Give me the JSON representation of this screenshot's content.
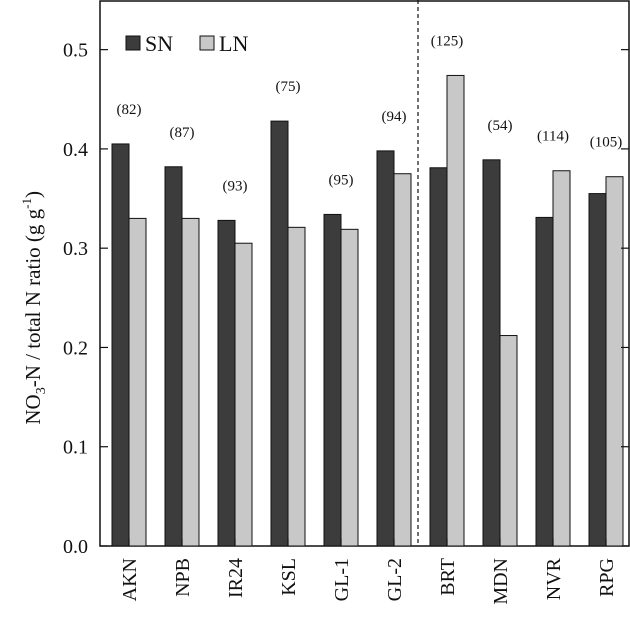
{
  "chart_data": {
    "type": "bar",
    "categories": [
      "AKN",
      "NPB",
      "IR24",
      "KSL",
      "GL-1",
      "GL-2",
      "BRT",
      "MDN",
      "NVR",
      "RPG"
    ],
    "series": [
      {
        "name": "SN",
        "color": "#3c3c3c",
        "values": [
          0.405,
          0.382,
          0.328,
          0.428,
          0.334,
          0.398,
          0.381,
          0.389,
          0.331,
          0.355
        ]
      },
      {
        "name": "LN",
        "color": "#c8c8c8",
        "values": [
          0.33,
          0.33,
          0.305,
          0.321,
          0.319,
          0.375,
          0.474,
          0.212,
          0.378,
          0.372
        ]
      }
    ],
    "annotations": [
      "(82)",
      "(87)",
      "(93)",
      "(75)",
      "(95)",
      "(94)",
      "(125)",
      "(54)",
      "(114)",
      "(105)"
    ],
    "y_ticks": [
      "0.0",
      "0.1",
      "0.2",
      "0.3",
      "0.4",
      "0.5"
    ],
    "ylabel": {
      "prefix": "NO",
      "sub": "3",
      "middle": "-N / total N ratio (g g",
      "sup": "-1",
      "suffix": ")"
    },
    "xlabel": "",
    "title": "",
    "ylim": [
      0,
      0.55
    ],
    "divider_after_category": "GL-2",
    "legend_placement": "top-left",
    "grid": false
  }
}
